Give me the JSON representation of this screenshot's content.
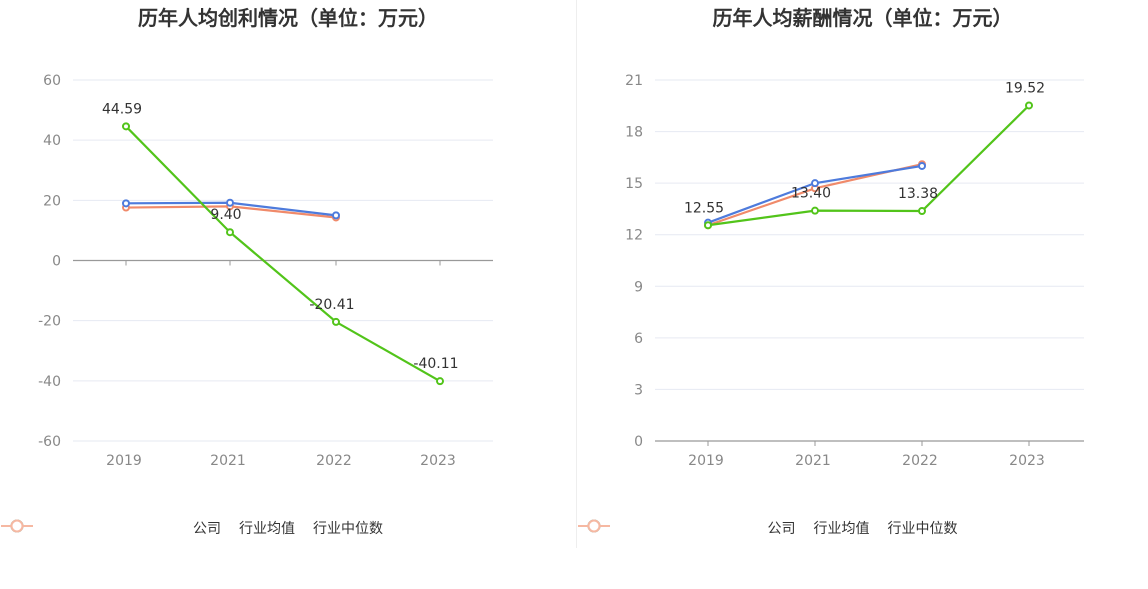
{
  "charts": [
    {
      "id": "left",
      "chart_data": {
        "type": "line",
        "title": "历年人均创利情况（单位：万元）",
        "categories": [
          "2019",
          "2021",
          "2022",
          "2023"
        ],
        "ylim": [
          -60,
          60
        ],
        "yticks": [
          "60",
          "40",
          "20",
          "0",
          "-20",
          "-40",
          "-60"
        ],
        "ytick_values": [
          60,
          40,
          20,
          0,
          -20,
          -40,
          -60
        ],
        "series": [
          {
            "name": "公司",
            "color": "#52c41a",
            "values": [
              44.59,
              9.4,
              -20.41,
              -40.11
            ],
            "labels": [
              "44.59",
              "9.40",
              "-20.41",
              "-40.11"
            ]
          },
          {
            "name": "行业均值",
            "color": "#4e7bdc",
            "values": [
              19.0,
              19.2,
              15.0,
              null
            ]
          },
          {
            "name": "行业中位数",
            "color": "#f08a6a",
            "values": [
              17.6,
              18.0,
              14.3,
              null
            ]
          }
        ],
        "legend_position": "bottom"
      }
    },
    {
      "id": "right",
      "chart_data": {
        "type": "line",
        "title": "历年人均薪酬情况（单位：万元）",
        "categories": [
          "2019",
          "2021",
          "2022",
          "2023"
        ],
        "ylim": [
          0,
          21
        ],
        "yticks": [
          "21",
          "18",
          "15",
          "12",
          "9",
          "6",
          "3",
          "0"
        ],
        "ytick_values": [
          21,
          18,
          15,
          12,
          9,
          6,
          3,
          0
        ],
        "series": [
          {
            "name": "公司",
            "color": "#52c41a",
            "values": [
              12.55,
              13.4,
              13.38,
              19.52
            ],
            "labels": [
              "12.55",
              "13.40",
              "13.38",
              "19.52"
            ]
          },
          {
            "name": "行业均值",
            "color": "#4e7bdc",
            "values": [
              12.7,
              15.0,
              16.0,
              null
            ]
          },
          {
            "name": "行业中位数",
            "color": "#f08a6a",
            "values": [
              12.55,
              14.7,
              16.1,
              null
            ]
          }
        ],
        "legend_position": "bottom"
      }
    }
  ],
  "legend": {
    "items": [
      {
        "label": "公司",
        "color": "#52c41a"
      },
      {
        "label": "行业均值",
        "color": "#8fb0ef"
      },
      {
        "label": "行业中位数",
        "color": "#f6b8a2"
      }
    ]
  }
}
